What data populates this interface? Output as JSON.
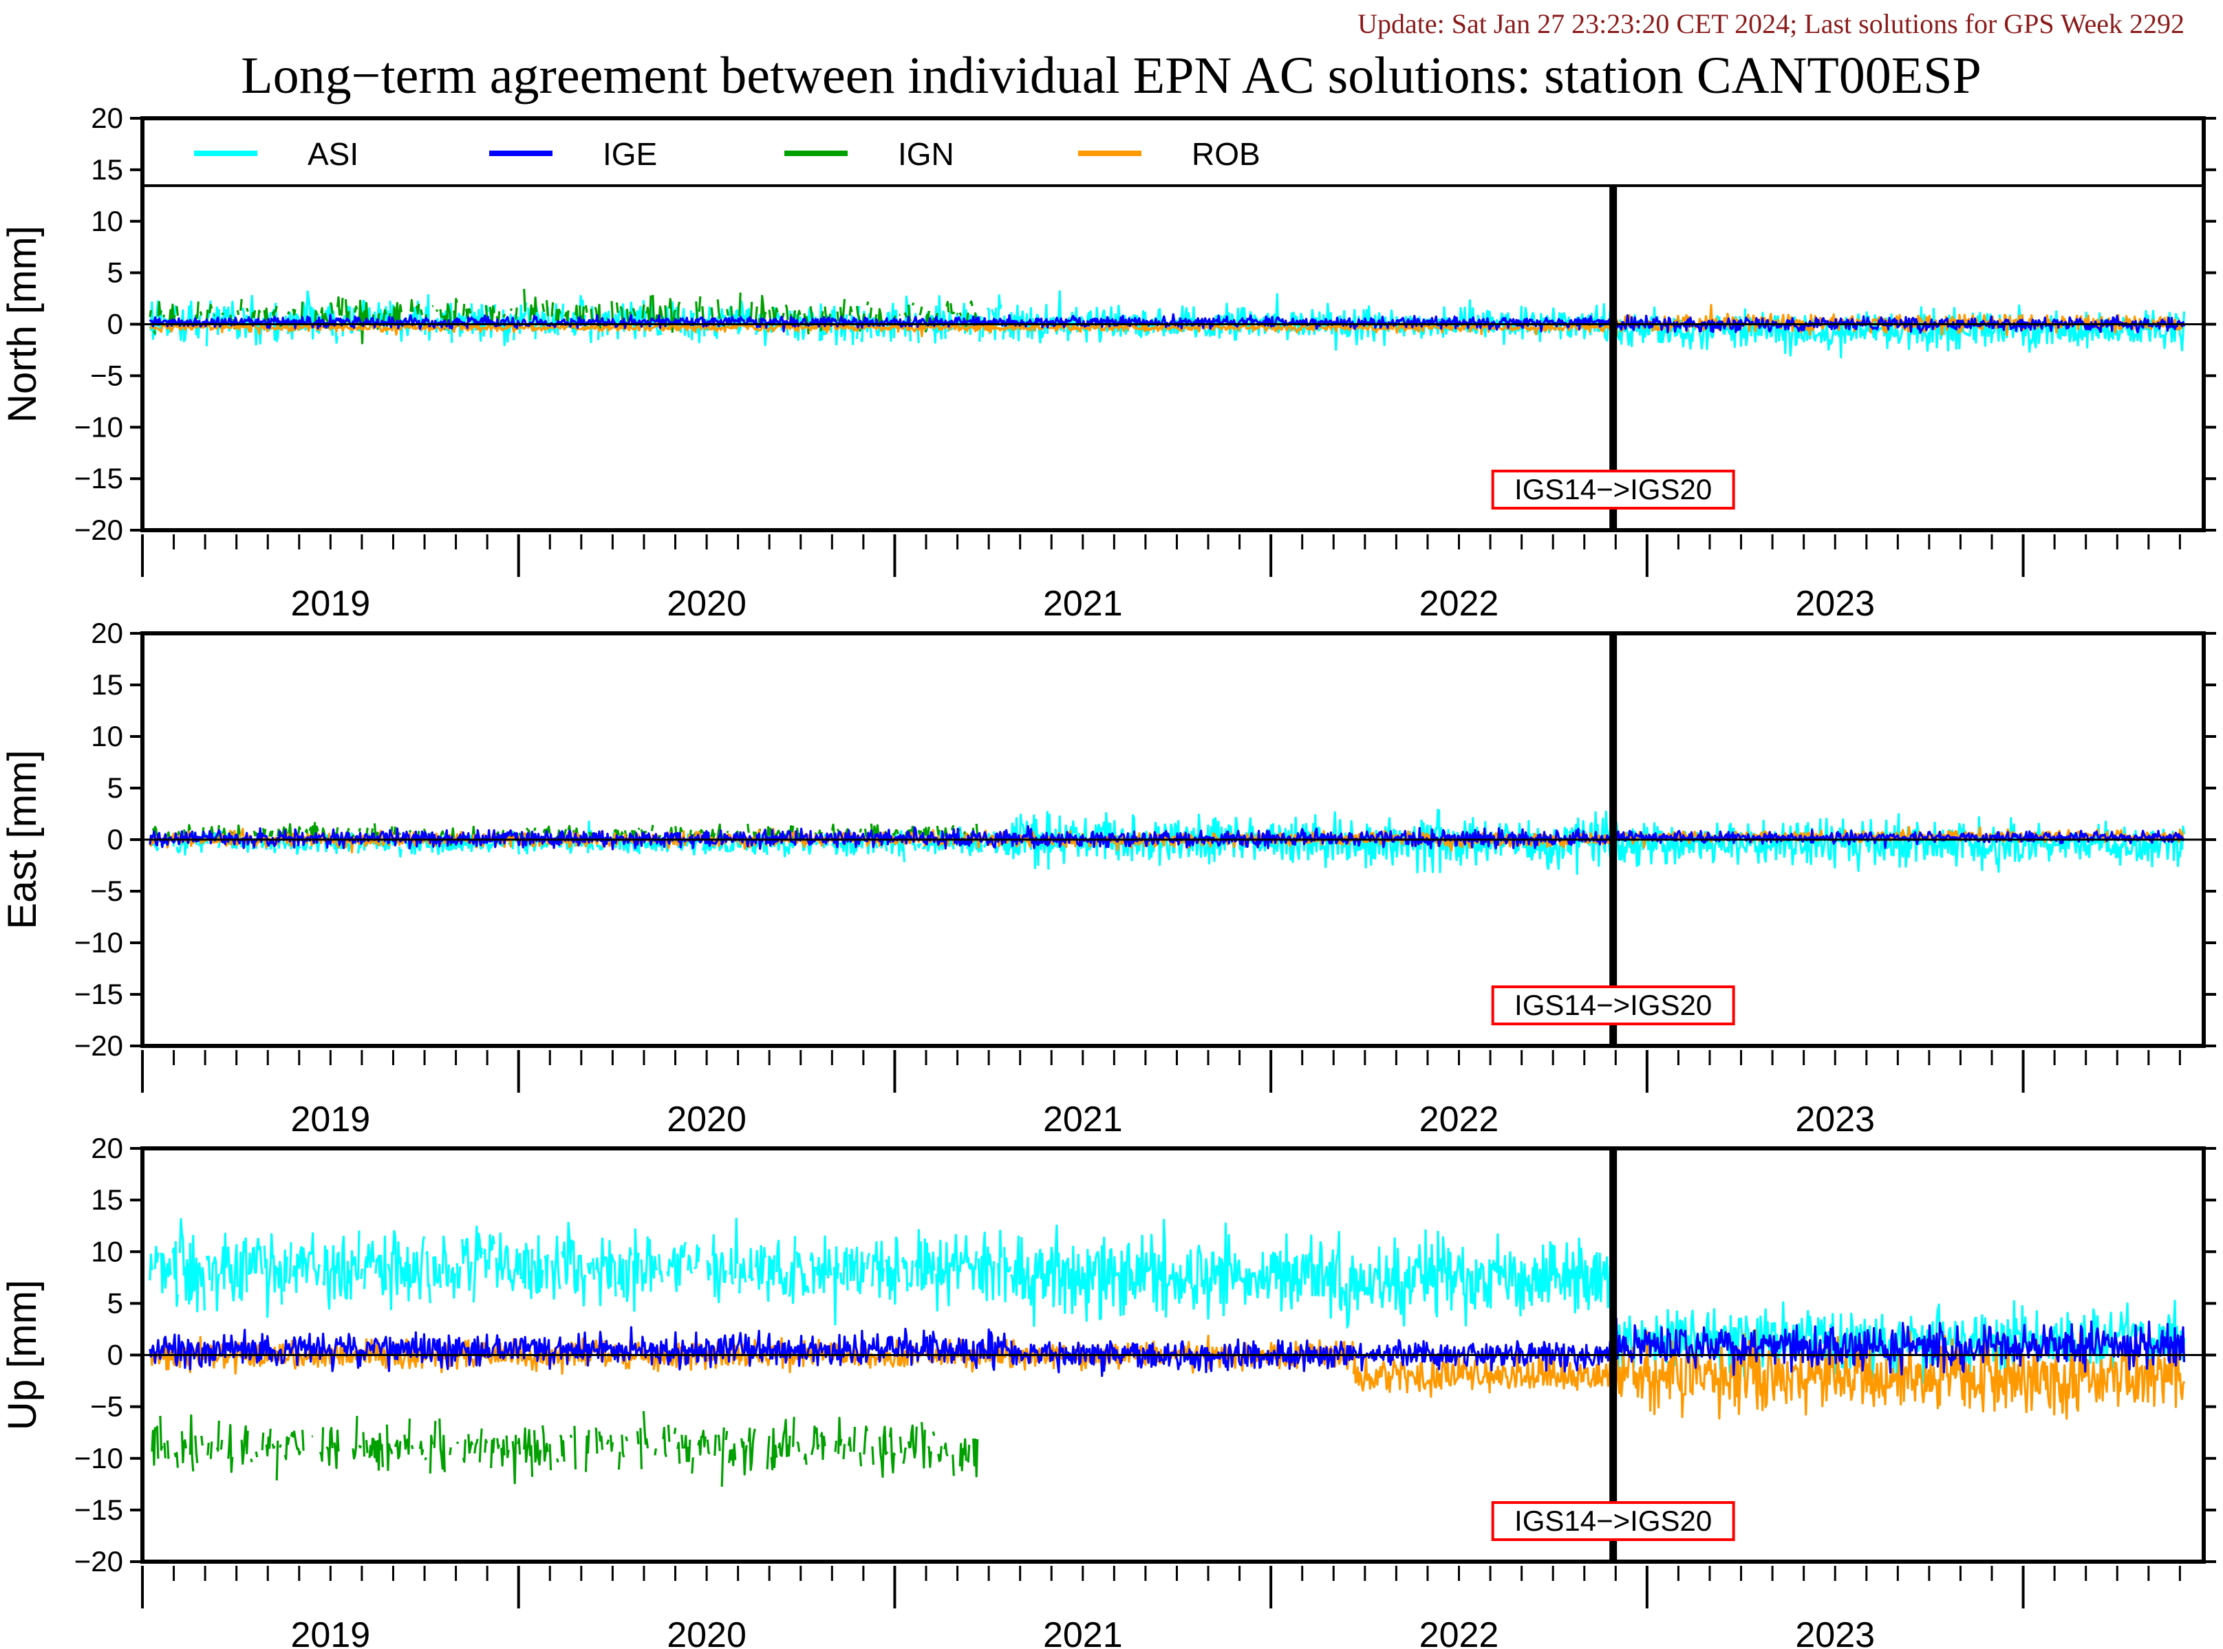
{
  "update_text": "Update: Sat Jan 27 23:23:20 CET 2024; Last solutions for GPS Week 2292",
  "title": "Long−term agreement between individual EPN AC solutions: station CANT00ESP",
  "colors": {
    "update_text": "#8b1a1a",
    "ASI": "#00ffff",
    "IGE": "#0000ff",
    "IGN": "#00a000",
    "ROB": "#ff9900",
    "marker_box": "#ff0000"
  },
  "chart_data": [
    {
      "type": "line",
      "ylabel": "North [mm]",
      "ylim": [
        -20,
        20
      ],
      "yticks": [
        20,
        15,
        10,
        5,
        0,
        -5,
        -10,
        -15,
        -20
      ],
      "xlim": [
        2018.5,
        2023.98
      ],
      "xtick_labels": [
        "2019",
        "2020",
        "2021",
        "2022",
        "2023"
      ],
      "legend": [
        "ASI",
        "IGE",
        "IGN",
        "ROB"
      ],
      "legend_position": "top (inside plot)",
      "reference_line": 0,
      "marker": {
        "x": 2022.41,
        "label": "IGS14−>IGS20"
      },
      "series": [
        {
          "name": "ASI",
          "segments": [
            {
              "x0": 2018.52,
              "x1": 2020.81,
              "mean": 0.3,
              "amp": 1.5
            },
            {
              "x0": 2020.81,
              "x1": 2022.41,
              "mean": 0.0,
              "amp": 1.2
            },
            {
              "x0": 2022.41,
              "x1": 2023.93,
              "mean": -0.6,
              "amp": 1.3
            }
          ]
        },
        {
          "name": "IGE",
          "segments": [
            {
              "x0": 2018.52,
              "x1": 2022.41,
              "mean": 0.2,
              "amp": 0.4
            },
            {
              "x0": 2022.41,
              "x1": 2023.93,
              "mean": 0.0,
              "amp": 0.5
            }
          ]
        },
        {
          "name": "IGN",
          "segments": [
            {
              "x0": 2018.52,
              "x1": 2020.72,
              "mean": 1.0,
              "amp": 1.2
            }
          ]
        },
        {
          "name": "ROB",
          "segments": [
            {
              "x0": 2018.52,
              "x1": 2022.41,
              "mean": -0.3,
              "amp": 0.3
            },
            {
              "x0": 2022.41,
              "x1": 2023.93,
              "mean": 0.1,
              "amp": 0.6
            }
          ]
        }
      ]
    },
    {
      "type": "line",
      "ylabel": "East [mm]",
      "ylim": [
        -20,
        20
      ],
      "yticks": [
        20,
        15,
        10,
        5,
        0,
        -5,
        -10,
        -15,
        -20
      ],
      "xlim": [
        2018.5,
        2023.98
      ],
      "xtick_labels": [
        "2019",
        "2020",
        "2021",
        "2022",
        "2023"
      ],
      "reference_line": 0,
      "marker": {
        "x": 2022.41,
        "label": "IGS14−>IGS20"
      },
      "series": [
        {
          "name": "ASI",
          "segments": [
            {
              "x0": 2018.52,
              "x1": 2020.81,
              "mean": -0.4,
              "amp": 0.8
            },
            {
              "x0": 2020.81,
              "x1": 2022.41,
              "mean": -0.2,
              "amp": 1.8
            },
            {
              "x0": 2022.41,
              "x1": 2023.93,
              "mean": -0.4,
              "amp": 1.5
            }
          ]
        },
        {
          "name": "IGE",
          "segments": [
            {
              "x0": 2018.52,
              "x1": 2022.41,
              "mean": 0.1,
              "amp": 0.6
            },
            {
              "x0": 2022.41,
              "x1": 2023.93,
              "mean": 0.2,
              "amp": 0.4
            }
          ]
        },
        {
          "name": "IGN",
          "segments": [
            {
              "x0": 2018.52,
              "x1": 2020.72,
              "mean": 0.6,
              "amp": 0.6
            }
          ]
        },
        {
          "name": "ROB",
          "segments": [
            {
              "x0": 2018.52,
              "x1": 2022.41,
              "mean": 0.0,
              "amp": 0.5
            },
            {
              "x0": 2022.41,
              "x1": 2023.93,
              "mean": 0.3,
              "amp": 0.4
            }
          ]
        }
      ]
    },
    {
      "type": "line",
      "ylabel": "Up [mm]",
      "ylim": [
        -20,
        20
      ],
      "yticks": [
        20,
        15,
        10,
        5,
        0,
        -5,
        -10,
        -15,
        -20
      ],
      "xlim": [
        2018.5,
        2023.98
      ],
      "xtick_labels": [
        "2019",
        "2020",
        "2021",
        "2022",
        "2023"
      ],
      "reference_line": 0,
      "marker": {
        "x": 2022.41,
        "label": "IGS14−>IGS20"
      },
      "series": [
        {
          "name": "ASI",
          "segments": [
            {
              "x0": 2018.52,
              "x1": 2020.81,
              "mean": 8.5,
              "amp": 2.5
            },
            {
              "x0": 2020.81,
              "x1": 2022.41,
              "mean": 7.5,
              "amp": 2.8
            },
            {
              "x0": 2022.41,
              "x1": 2023.93,
              "mean": 1.5,
              "amp": 2.2
            }
          ]
        },
        {
          "name": "IGE",
          "segments": [
            {
              "x0": 2018.52,
              "x1": 2020.81,
              "mean": 0.5,
              "amp": 1.2
            },
            {
              "x0": 2020.81,
              "x1": 2022.41,
              "mean": 0.0,
              "amp": 1.0
            },
            {
              "x0": 2022.41,
              "x1": 2023.93,
              "mean": 0.8,
              "amp": 1.6
            }
          ]
        },
        {
          "name": "IGN",
          "segments": [
            {
              "x0": 2018.52,
              "x1": 2020.72,
              "mean": -9.0,
              "amp": 2.0
            }
          ]
        },
        {
          "name": "ROB",
          "segments": [
            {
              "x0": 2018.52,
              "x1": 2021.72,
              "mean": 0.0,
              "amp": 1.0
            },
            {
              "x0": 2021.72,
              "x1": 2022.41,
              "mean": -2.0,
              "amp": 1.3
            },
            {
              "x0": 2022.41,
              "x1": 2023.93,
              "mean": -2.0,
              "amp": 2.5
            }
          ]
        }
      ]
    }
  ]
}
